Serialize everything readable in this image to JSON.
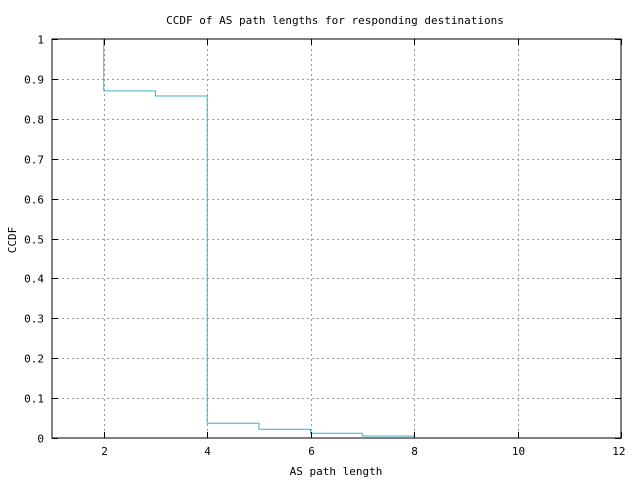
{
  "chart_data": {
    "type": "line",
    "step": "post",
    "title": "CCDF of AS path lengths for responding destinations",
    "xlabel": "AS path length",
    "ylabel": "CCDF",
    "xlim": [
      1,
      12
    ],
    "ylim": [
      0,
      1
    ],
    "xticks": [
      2,
      4,
      6,
      8,
      10,
      12
    ],
    "xtick_labels": [
      "2",
      "4",
      "6",
      "8",
      "10",
      "12"
    ],
    "yticks": [
      0,
      0.1,
      0.2,
      0.3,
      0.4,
      0.5,
      0.6,
      0.7,
      0.8,
      0.9,
      1
    ],
    "ytick_labels": [
      "0",
      "0.1",
      "0.2",
      "0.3",
      "0.4",
      "0.5",
      "0.6",
      "0.7",
      "0.8",
      "0.9",
      "1"
    ],
    "grid": true,
    "series": [
      {
        "color": "#3fb0c8",
        "x": [
          2,
          2,
          3,
          4,
          5,
          6,
          7,
          8
        ],
        "y": [
          1.0,
          0.87,
          0.857,
          0.037,
          0.022,
          0.012,
          0.005,
          0.0
        ]
      }
    ]
  }
}
